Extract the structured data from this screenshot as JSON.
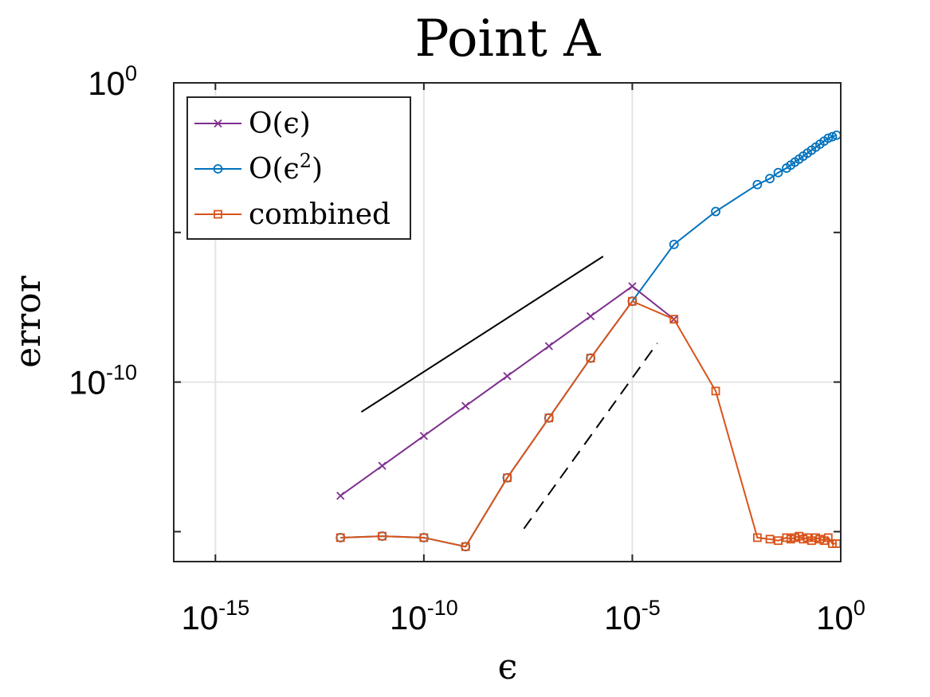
{
  "chart_data": {
    "type": "line",
    "title": "Point A",
    "xlabel": "ϵ",
    "ylabel": "error",
    "xscale": "log",
    "yscale": "log",
    "xlim_exp": [
      -16,
      0
    ],
    "ylim_exp": [
      -16,
      0
    ],
    "x_ticks": [
      {
        "base": "10",
        "exp": "-15",
        "value_exp": -15
      },
      {
        "base": "10",
        "exp": "-10",
        "value_exp": -10
      },
      {
        "base": "10",
        "exp": "-5",
        "value_exp": -5
      },
      {
        "base": "10",
        "exp": "0",
        "value_exp": 0
      }
    ],
    "y_ticks": [
      {
        "base": "10",
        "exp": "0",
        "value_exp": 0
      },
      {
        "base": "10",
        "exp": "-10",
        "value_exp": -10
      }
    ],
    "y_minor_ticks_exp": [
      -5,
      -15
    ],
    "grid": true,
    "legend_position": "top-left",
    "series": [
      {
        "name": "O(ϵ)",
        "label_base": "O(ϵ)",
        "label_sup": "",
        "color": "#7E2F8E",
        "marker": "x",
        "x_exp": [
          -12,
          -11,
          -10,
          -9,
          -8,
          -7,
          -6,
          -5,
          -4
        ],
        "y_exp": [
          -13.8,
          -12.8,
          -11.8,
          -10.8,
          -9.8,
          -8.8,
          -7.8,
          -6.8,
          -7.9
        ]
      },
      {
        "name": "O(ϵ^2)",
        "label_base": "O(ϵ",
        "label_sup": "2",
        "label_tail": ")",
        "color": "#0072BD",
        "marker": "o",
        "x_exp": [
          -12,
          -11,
          -10,
          -9,
          -8,
          -7,
          -6,
          -5,
          -4,
          -3,
          -2,
          -1.7,
          -1.5,
          -1.3,
          -1.2,
          -1.1,
          -1.0,
          -0.9,
          -0.8,
          -0.7,
          -0.6,
          -0.5,
          -0.4,
          -0.3,
          -0.2,
          -0.1
        ],
        "y_exp": [
          -15.2,
          -15.15,
          -15.2,
          -15.5,
          -13.2,
          -11.2,
          -9.2,
          -7.3,
          -5.4,
          -4.3,
          -3.4,
          -3.2,
          -3.0,
          -2.85,
          -2.75,
          -2.65,
          -2.55,
          -2.45,
          -2.35,
          -2.25,
          -2.15,
          -2.05,
          -1.95,
          -1.85,
          -1.8,
          -1.75
        ]
      },
      {
        "name": "combined",
        "label_base": "combined",
        "label_sup": "",
        "color": "#D95319",
        "marker": "s",
        "x_exp": [
          -12,
          -11,
          -10,
          -9,
          -8,
          -7,
          -6,
          -5,
          -4,
          -3,
          -2,
          -1.7,
          -1.5,
          -1.3,
          -1.2,
          -1.1,
          -1.0,
          -0.9,
          -0.8,
          -0.7,
          -0.6,
          -0.5,
          -0.4,
          -0.3,
          -0.2,
          -0.1
        ],
        "y_exp": [
          -15.2,
          -15.15,
          -15.2,
          -15.5,
          -13.2,
          -11.2,
          -9.2,
          -7.3,
          -7.9,
          -10.3,
          -15.2,
          -15.25,
          -15.3,
          -15.2,
          -15.25,
          -15.2,
          -15.15,
          -15.25,
          -15.2,
          -15.3,
          -15.2,
          -15.25,
          -15.3,
          -15.2,
          -15.4,
          -15.4
        ]
      }
    ],
    "reference_lines": [
      {
        "style": "solid",
        "color": "#000000",
        "slope": "1",
        "x_exp": [
          -11.5,
          -5.7
        ],
        "y_exp": [
          -11.0,
          -5.8
        ]
      },
      {
        "style": "dashed",
        "color": "#000000",
        "slope": "2",
        "x_exp": [
          -7.6,
          -4.4
        ],
        "y_exp": [
          -14.9,
          -8.7
        ]
      }
    ]
  }
}
